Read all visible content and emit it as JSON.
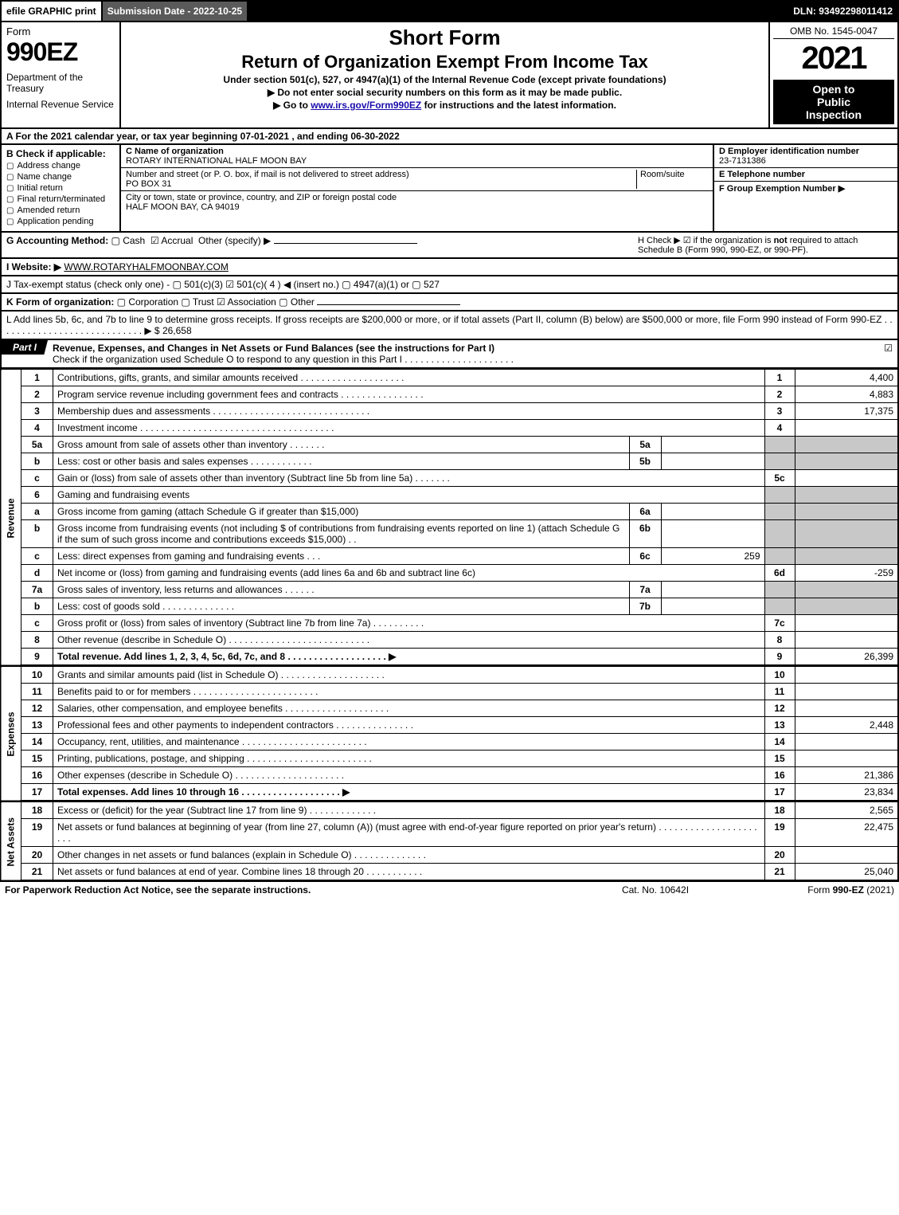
{
  "topbar": {
    "efile": "efile GRAPHIC print",
    "submission": "Submission Date - 2022-10-25",
    "dln": "DLN: 93492298011412"
  },
  "header": {
    "form_word": "Form",
    "form_no": "990EZ",
    "dept": "Department of the Treasury",
    "irs": "Internal Revenue Service",
    "short": "Short Form",
    "title": "Return of Organization Exempt From Income Tax",
    "sub1": "Under section 501(c), 527, or 4947(a)(1) of the Internal Revenue Code (except private foundations)",
    "sub2": "▶ Do not enter social security numbers on this form as it may be made public.",
    "sub3_pre": "▶ Go to ",
    "sub3_link": "www.irs.gov/Form990EZ",
    "sub3_post": " for instructions and the latest information.",
    "omb": "OMB No. 1545-0047",
    "year": "2021",
    "inspect1": "Open to",
    "inspect2": "Public",
    "inspect3": "Inspection"
  },
  "lineA": "A  For the 2021 calendar year, or tax year beginning 07-01-2021 , and ending 06-30-2022",
  "B": {
    "label": "B  Check if applicable:",
    "opts": [
      "Address change",
      "Name change",
      "Initial return",
      "Final return/terminated",
      "Amended return",
      "Application pending"
    ]
  },
  "C": {
    "name_label": "C Name of organization",
    "name": "ROTARY INTERNATIONAL HALF MOON BAY",
    "street_label": "Number and street (or P. O. box, if mail is not delivered to street address)",
    "room_label": "Room/suite",
    "street": "PO BOX 31",
    "city_label": "City or town, state or province, country, and ZIP or foreign postal code",
    "city": "HALF MOON BAY, CA  94019"
  },
  "D": {
    "label": "D Employer identification number",
    "value": "23-7131386"
  },
  "E": {
    "label": "E Telephone number",
    "value": ""
  },
  "F": {
    "label": "F Group Exemption Number  ▶",
    "value": ""
  },
  "G": {
    "label": "G Accounting Method:",
    "cash": "Cash",
    "accrual": "Accrual",
    "other": "Other (specify) ▶"
  },
  "H": {
    "text1": "H  Check ▶ ☑ if the organization is ",
    "not": "not",
    "text2": " required to attach Schedule B (Form 990, 990-EZ, or 990-PF)."
  },
  "I": {
    "label": "I Website: ▶",
    "value": "WWW.ROTARYHALFMOONBAY.COM"
  },
  "J": "J Tax-exempt status (check only one) - ▢ 501(c)(3)  ☑ 501(c)( 4 ) ◀ (insert no.)  ▢ 4947(a)(1) or  ▢ 527",
  "K": {
    "label": "K Form of organization:",
    "opts": "▢ Corporation   ▢ Trust   ☑ Association   ▢ Other"
  },
  "L": {
    "text": "L Add lines 5b, 6c, and 7b to line 9 to determine gross receipts. If gross receipts are $200,000 or more, or if total assets (Part II, column (B) below) are $500,000 or more, file Form 990 instead of Form 990-EZ  .  .  .  .  .  .  .  .  .  .  .  .  .  .  .  .  .  .  .  .  .  .  .  .  .  .  .  .  ▶ $",
    "amt": "26,658"
  },
  "part1": {
    "label": "Part I",
    "title": "Revenue, Expenses, and Changes in Net Assets or Fund Balances (see the instructions for Part I)",
    "check_line": "Check if the organization used Schedule O to respond to any question in this Part I  .  .  .  .  .  .  .  .  .  .  .  .  .  .  .  .  .  .  .  .  .",
    "check_mark": "☑"
  },
  "side_labels": {
    "revenue": "Revenue",
    "expenses": "Expenses",
    "net": "Net Assets"
  },
  "lines": [
    {
      "n": "1",
      "desc": "Contributions, gifts, grants, and similar amounts received  .  .  .  .  .  .  .  .  .  .  .  .  .  .  .  .  .  .  .  .",
      "num": "1",
      "amt": "4,400"
    },
    {
      "n": "2",
      "desc": "Program service revenue including government fees and contracts  .  .  .  .  .  .  .  .  .  .  .  .  .  .  .  .",
      "num": "2",
      "amt": "4,883"
    },
    {
      "n": "3",
      "desc": "Membership dues and assessments  .  .  .  .  .  .  .  .  .  .  .  .  .  .  .  .  .  .  .  .  .  .  .  .  .  .  .  .  .  .",
      "num": "3",
      "amt": "17,375"
    },
    {
      "n": "4",
      "desc": "Investment income  .  .  .  .  .  .  .  .  .  .  .  .  .  .  .  .  .  .  .  .  .  .  .  .  .  .  .  .  .  .  .  .  .  .  .  .  .",
      "num": "4",
      "amt": ""
    },
    {
      "n": "5a",
      "desc": "Gross amount from sale of assets other than inventory  .  .  .  .  .  .  .",
      "sub": "5a",
      "subval": ""
    },
    {
      "n": "b",
      "desc": "Less: cost or other basis and sales expenses  .  .  .  .  .  .  .  .  .  .  .  .",
      "sub": "5b",
      "subval": ""
    },
    {
      "n": "c",
      "desc": "Gain or (loss) from sale of assets other than inventory (Subtract line 5b from line 5a)  .  .  .  .  .  .  .",
      "num": "5c",
      "amt": ""
    },
    {
      "n": "6",
      "desc": "Gaming and fundraising events"
    },
    {
      "n": "a",
      "desc": "Gross income from gaming (attach Schedule G if greater than $15,000)",
      "sub": "6a",
      "subval": ""
    },
    {
      "n": "b",
      "desc": "Gross income from fundraising events (not including $                                of contributions from fundraising events reported on line 1) (attach Schedule G if the sum of such gross income and contributions exceeds $15,000)     .    .",
      "sub": "6b",
      "subval": ""
    },
    {
      "n": "c",
      "desc": "Less: direct expenses from gaming and fundraising events           .    .    .",
      "sub": "6c",
      "subval": "259"
    },
    {
      "n": "d",
      "desc": "Net income or (loss) from gaming and fundraising events (add lines 6a and 6b and subtract line 6c)",
      "num": "6d",
      "amt": "-259"
    },
    {
      "n": "7a",
      "desc": "Gross sales of inventory, less returns and allowances  .  .  .  .  .  .",
      "sub": "7a",
      "subval": ""
    },
    {
      "n": "b",
      "desc": "Less: cost of goods sold           .    .    .    .    .    .    .    .    .    .    .    .    .    .",
      "sub": "7b",
      "subval": ""
    },
    {
      "n": "c",
      "desc": "Gross profit or (loss) from sales of inventory (Subtract line 7b from line 7a)  .  .  .  .  .  .  .  .  .  .",
      "num": "7c",
      "amt": ""
    },
    {
      "n": "8",
      "desc": "Other revenue (describe in Schedule O)  .  .  .  .  .  .  .  .  .  .  .  .  .  .  .  .  .  .  .  .  .  .  .  .  .  .  .",
      "num": "8",
      "amt": ""
    },
    {
      "n": "9",
      "desc": "Total revenue. Add lines 1, 2, 3, 4, 5c, 6d, 7c, and 8  .  .  .  .  .  .  .  .  .  .  .  .  .  .  .  .  .  .  .       ▶",
      "num": "9",
      "amt": "26,399",
      "bold": true
    }
  ],
  "exp_lines": [
    {
      "n": "10",
      "desc": "Grants and similar amounts paid (list in Schedule O)  .  .  .  .  .  .  .  .  .  .  .  .  .  .  .  .  .  .  .  .",
      "num": "10",
      "amt": ""
    },
    {
      "n": "11",
      "desc": "Benefits paid to or for members       .    .    .    .    .    .    .    .    .    .    .    .    .    .    .    .    .    .    .    .    .    .    .    .",
      "num": "11",
      "amt": ""
    },
    {
      "n": "12",
      "desc": "Salaries, other compensation, and employee benefits  .  .  .  .  .  .  .  .  .  .  .  .  .  .  .  .  .  .  .  .",
      "num": "12",
      "amt": ""
    },
    {
      "n": "13",
      "desc": "Professional fees and other payments to independent contractors  .  .  .  .  .  .  .  .  .  .  .  .  .  .  .",
      "num": "13",
      "amt": "2,448"
    },
    {
      "n": "14",
      "desc": "Occupancy, rent, utilities, and maintenance  .  .  .  .  .  .  .  .  .  .  .  .  .  .  .  .  .  .  .  .  .  .  .  .",
      "num": "14",
      "amt": ""
    },
    {
      "n": "15",
      "desc": "Printing, publications, postage, and shipping  .  .  .  .  .  .  .  .  .  .  .  .  .  .  .  .  .  .  .  .  .  .  .  .",
      "num": "15",
      "amt": ""
    },
    {
      "n": "16",
      "desc": "Other expenses (describe in Schedule O)      .    .    .    .    .    .    .    .    .    .    .    .    .    .    .    .    .    .    .    .    .",
      "num": "16",
      "amt": "21,386"
    },
    {
      "n": "17",
      "desc": "Total expenses. Add lines 10 through 16        .    .    .    .    .    .    .    .    .    .    .    .    .    .    .    .    .    .    .       ▶",
      "num": "17",
      "amt": "23,834",
      "bold": true
    }
  ],
  "net_lines": [
    {
      "n": "18",
      "desc": "Excess or (deficit) for the year (Subtract line 17 from line 9)          .    .    .    .    .    .    .    .    .    .    .    .    .",
      "num": "18",
      "amt": "2,565"
    },
    {
      "n": "19",
      "desc": "Net assets or fund balances at beginning of year (from line 27, column (A)) (must agree with end-of-year figure reported on prior year's return)  .  .  .  .  .  .  .  .  .  .  .  .  .  .  .  .  .  .  .  .  .  .",
      "num": "19",
      "amt": "22,475"
    },
    {
      "n": "20",
      "desc": "Other changes in net assets or fund balances (explain in Schedule O)  .  .  .  .  .  .  .  .  .  .  .  .  .  .",
      "num": "20",
      "amt": ""
    },
    {
      "n": "21",
      "desc": "Net assets or fund balances at end of year. Combine lines 18 through 20  .  .  .  .  .  .  .  .  .  .  .",
      "num": "21",
      "amt": "25,040"
    }
  ],
  "footer": {
    "left": "For Paperwork Reduction Act Notice, see the separate instructions.",
    "mid": "Cat. No. 10642I",
    "right_pre": "Form ",
    "right_bold": "990-EZ",
    "right_post": " (2021)"
  },
  "colors": {
    "black": "#000000",
    "grey_cell": "#c8c8c8",
    "topbar_grey": "#5a5a5a",
    "link": "#1a0dab"
  }
}
